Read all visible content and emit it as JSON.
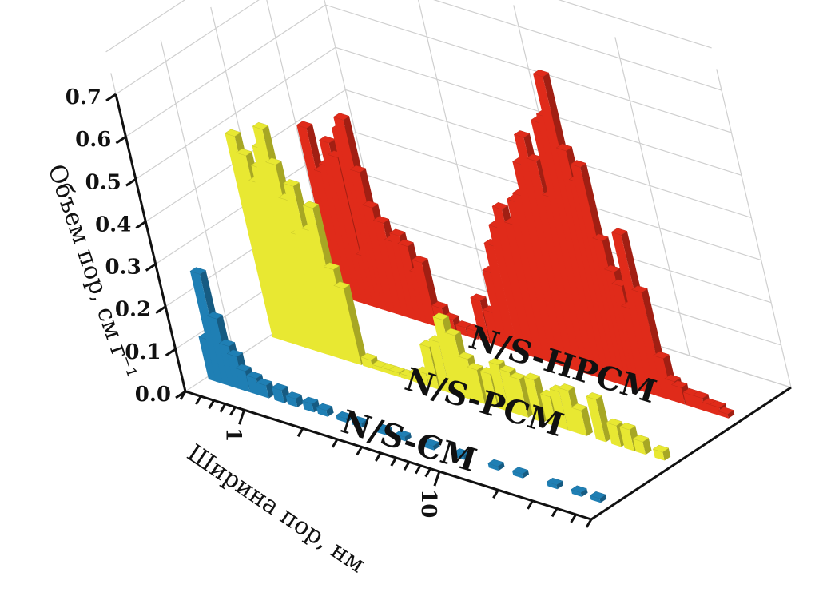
{
  "chart_data": {
    "type": "bar",
    "style": "3d-waterfall",
    "ylabel": "Объем пор, см г⁻¹",
    "xlabel": "Ширина пор, нм",
    "y_ticks": [
      "0.0",
      "0.1",
      "0.2",
      "0.3",
      "0.4",
      "0.5",
      "0.6",
      "0.7"
    ],
    "ylim": [
      0,
      0.7
    ],
    "x_scale": "log",
    "x_ticks": [
      "1",
      "10"
    ],
    "xlim": [
      0.5,
      60
    ],
    "grid": true,
    "series": [
      {
        "name": "N/S-CM",
        "color": "#1f7fb4",
        "x": [
          0.55,
          0.6,
          0.65,
          0.7,
          0.75,
          0.8,
          0.9,
          1.0,
          1.2,
          1.4,
          1.7,
          2,
          2.5,
          3,
          4,
          5,
          7,
          10,
          15,
          20,
          30,
          40,
          50
        ],
        "values": [
          0.1,
          0.26,
          0.16,
          0.1,
          0.08,
          0.05,
          0.04,
          0.03,
          0.03,
          0.02,
          0.02,
          0.015,
          0.01,
          0.01,
          0.01,
          0.01,
          0.01,
          0.01,
          0.01,
          0.01,
          0.01,
          0.01,
          0.01
        ]
      },
      {
        "name": "N/S-PCM",
        "color": "#e8e832",
        "x": [
          0.55,
          0.6,
          0.65,
          0.7,
          0.75,
          0.8,
          0.85,
          0.9,
          0.95,
          1.0,
          1.1,
          1.2,
          1.3,
          1.4,
          1.6,
          1.8,
          2.0,
          2.2,
          2.5,
          2.8,
          3.1,
          3.5,
          4,
          4.5,
          5,
          5.5,
          6,
          7,
          8,
          9,
          10,
          12,
          14,
          16,
          18,
          20,
          25,
          30,
          35,
          40,
          50
        ],
        "values": [
          0.48,
          0.44,
          0.38,
          0.42,
          0.47,
          0.52,
          0.44,
          0.36,
          0.28,
          0.4,
          0.3,
          0.36,
          0.22,
          0.18,
          0.02,
          0.01,
          0.01,
          0.01,
          0.01,
          0.02,
          0.03,
          0.1,
          0.12,
          0.18,
          0.15,
          0.1,
          0.08,
          0.08,
          0.11,
          0.1,
          0.09,
          0.1,
          0.07,
          0.09,
          0.1,
          0.06,
          0.1,
          0.05,
          0.05,
          0.03,
          0.02
        ]
      },
      {
        "name": "N/S-HPCM",
        "color": "#e02b1a",
        "x": [
          0.55,
          0.6,
          0.65,
          0.7,
          0.75,
          0.8,
          0.85,
          0.9,
          0.95,
          1.0,
          1.1,
          1.2,
          1.3,
          1.4,
          1.5,
          1.6,
          1.8,
          2.0,
          2.3,
          2.6,
          3.0,
          3.4,
          3.8,
          4.2,
          4.7,
          5.2,
          5.8,
          6.4,
          7,
          7.7,
          8.5,
          9.3,
          10.2,
          11,
          12,
          13,
          14,
          15,
          16,
          17,
          18,
          19,
          20,
          22,
          24,
          26,
          28,
          30,
          34,
          38,
          42,
          46,
          50
        ],
        "values": [
          0.4,
          0.3,
          0.32,
          0.38,
          0.35,
          0.12,
          0.42,
          0.45,
          0.33,
          0.25,
          0.22,
          0.18,
          0.2,
          0.18,
          0.12,
          0.15,
          0.05,
          0.03,
          0.02,
          0.02,
          0.1,
          0.08,
          0.18,
          0.25,
          0.3,
          0.35,
          0.32,
          0.38,
          0.4,
          0.48,
          0.55,
          0.5,
          0.42,
          0.6,
          0.62,
          0.72,
          0.55,
          0.48,
          0.52,
          0.35,
          0.28,
          0.25,
          0.2,
          0.38,
          0.25,
          0.1,
          0.05,
          0.04,
          0.03,
          0.03,
          0.02,
          0.02,
          0.01
        ]
      }
    ]
  }
}
